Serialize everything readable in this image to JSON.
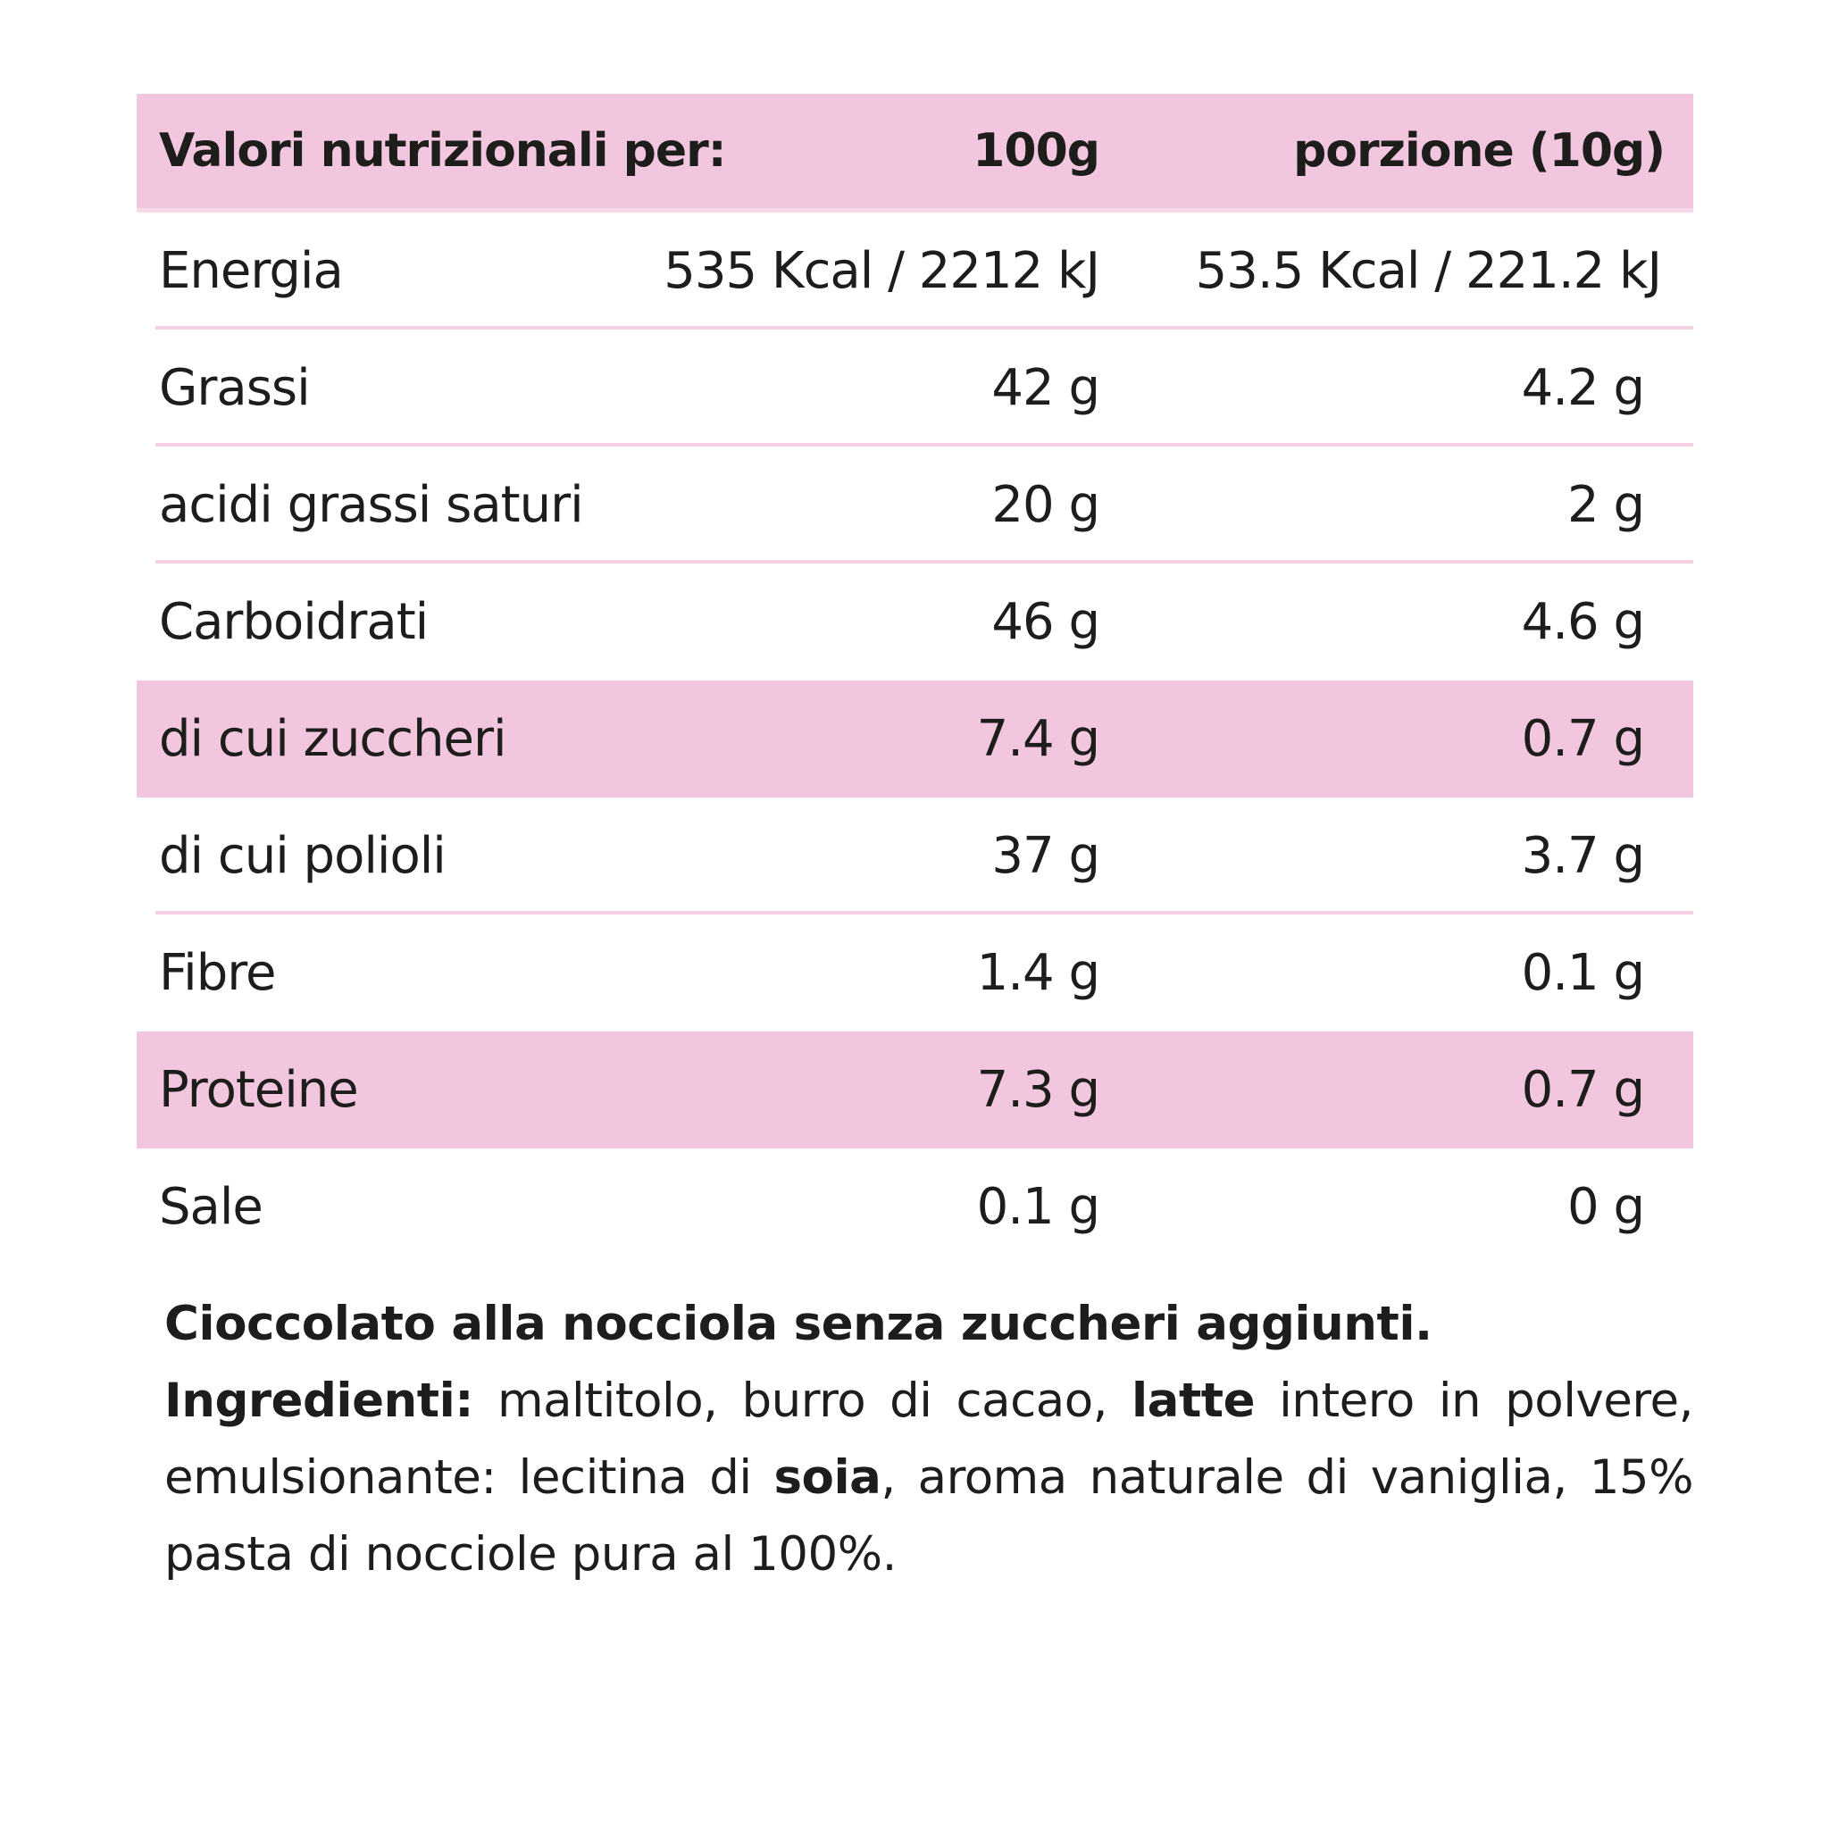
{
  "header": {
    "label": "Valori nutrizionali per:",
    "col1": "100g",
    "col2": "porzione (10g)"
  },
  "rows": [
    {
      "label": "Energia",
      "v100": "535 Kcal / 2212 kJ",
      "vp": "53.5 Kcal / 221.2 kJ"
    },
    {
      "label": "Grassi",
      "v100": "42 g",
      "vp": "4.2 g"
    },
    {
      "label": "acidi grassi saturi",
      "v100": "20 g",
      "vp": "2 g"
    },
    {
      "label": "Carboidrati",
      "v100": "46 g",
      "vp": "4.6 g"
    },
    {
      "label": "di cui zuccheri",
      "v100": "7.4 g",
      "vp": "0.7 g"
    },
    {
      "label": "di cui polioli",
      "v100": "37 g",
      "vp": "3.7 g"
    },
    {
      "label": "Fibre",
      "v100": "1.4 g",
      "vp": "0.1 g"
    },
    {
      "label": "Proteine",
      "v100": "7.3 g",
      "vp": "0.7 g"
    },
    {
      "label": "Sale",
      "v100": "0.1 g",
      "vp": "0 g"
    }
  ],
  "description": {
    "title": "Cioccolato alla nocciola senza zuccheri aggiunti.",
    "ingredients_label": "Ingredienti:",
    "p1": " maltitolo, burro di cacao, ",
    "b1": "latte",
    "p2": " intero in polvere, emulsionante: lecitina di ",
    "b2": "soia",
    "p3": ", aroma naturale di vaniglia, 15% pasta di nocciole pura al 100%."
  },
  "colors": {
    "pink": "#f3c6df",
    "text": "#1d1d1b"
  }
}
